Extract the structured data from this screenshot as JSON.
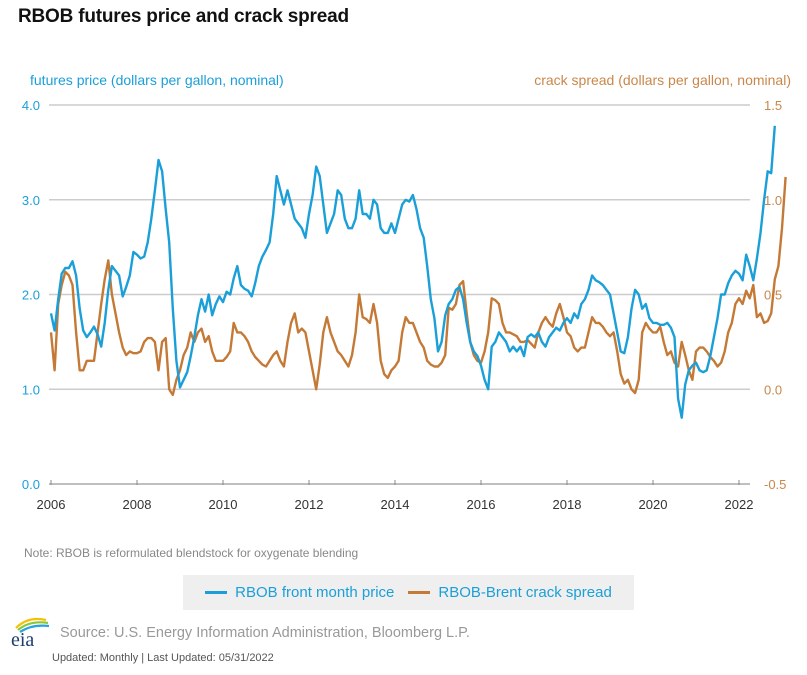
{
  "title": "RBOB futures price and crack spread",
  "note": "Note: RBOB is reformulated blendstock for oxygenate blending",
  "source": "Source: U.S. Energy Information Administration, Bloomberg L.P.",
  "updated": "Updated: Monthly | Last Updated: 05/31/2022",
  "logo": {
    "text": "eia",
    "icon": "eia-logo-icon"
  },
  "colors": {
    "price": "#1a9fd9",
    "spread": "#c47a36",
    "grid": "#cccccc",
    "legend_bg": "#efefef"
  },
  "chart_data": {
    "type": "line",
    "title": "RBOB futures price and crack spread",
    "xlabel": "",
    "ylabel_left": "futures price (dollars per gallon, nominal)",
    "ylabel_right": "crack spread (dollars per gallon, nominal)",
    "x_ticks": [
      "2006",
      "2008",
      "2010",
      "2012",
      "2014",
      "2016",
      "2018",
      "2020",
      "2022"
    ],
    "y_left_ticks": [
      "0.0",
      "1.0",
      "2.0",
      "3.0",
      "4.0"
    ],
    "y_right_ticks": [
      "-0.5",
      "0.0",
      "0.5",
      "1.0",
      "1.5"
    ],
    "ylim_left": [
      0,
      4
    ],
    "ylim_right": [
      -0.5,
      1.5
    ],
    "xlim": [
      2006.0,
      2022.75
    ],
    "grid": true,
    "legend_position": "bottom-center",
    "x_start": 2006.0,
    "x_step": 0.0833333,
    "series": [
      {
        "name": "RBOB front month price",
        "axis": "left",
        "values": [
          1.8,
          1.62,
          1.95,
          2.22,
          2.28,
          2.28,
          2.35,
          2.2,
          1.85,
          1.62,
          1.55,
          1.6,
          1.66,
          1.58,
          1.45,
          1.7,
          2.05,
          2.3,
          2.25,
          2.2,
          1.98,
          2.08,
          2.2,
          2.45,
          2.42,
          2.38,
          2.4,
          2.55,
          2.8,
          3.1,
          3.42,
          3.3,
          2.9,
          2.55,
          1.85,
          1.3,
          1.02,
          1.1,
          1.18,
          1.35,
          1.55,
          1.78,
          1.95,
          1.82,
          2.0,
          1.78,
          1.9,
          1.98,
          1.92,
          2.03,
          2.0,
          2.17,
          2.3,
          2.1,
          2.06,
          2.04,
          1.98,
          2.12,
          2.3,
          2.4,
          2.47,
          2.55,
          2.85,
          3.25,
          3.1,
          2.95,
          3.1,
          2.95,
          2.8,
          2.75,
          2.7,
          2.6,
          2.85,
          3.05,
          3.35,
          3.25,
          2.95,
          2.65,
          2.75,
          2.85,
          3.1,
          3.05,
          2.8,
          2.7,
          2.7,
          2.8,
          3.1,
          2.85,
          2.85,
          2.8,
          3.0,
          2.95,
          2.7,
          2.65,
          2.65,
          2.75,
          2.65,
          2.8,
          2.95,
          3.0,
          2.98,
          3.05,
          2.9,
          2.7,
          2.6,
          2.3,
          1.95,
          1.75,
          1.4,
          1.5,
          1.78,
          1.9,
          1.95,
          2.05,
          2.08,
          1.95,
          1.7,
          1.5,
          1.4,
          1.35,
          1.25,
          1.1,
          1.0,
          1.45,
          1.5,
          1.6,
          1.55,
          1.5,
          1.4,
          1.45,
          1.4,
          1.45,
          1.35,
          1.55,
          1.58,
          1.55,
          1.6,
          1.5,
          1.45,
          1.55,
          1.6,
          1.65,
          1.62,
          1.7,
          1.75,
          1.7,
          1.8,
          1.75,
          1.9,
          1.95,
          2.05,
          2.2,
          2.15,
          2.13,
          2.1,
          2.05,
          2.0,
          1.8,
          1.6,
          1.4,
          1.38,
          1.55,
          1.85,
          2.05,
          2.0,
          1.85,
          1.9,
          1.75,
          1.7,
          1.7,
          1.68,
          1.68,
          1.7,
          1.65,
          1.55,
          0.9,
          0.7,
          1.05,
          1.2,
          1.25,
          1.28,
          1.2,
          1.18,
          1.2,
          1.35,
          1.55,
          1.75,
          2.0,
          2.0,
          2.12,
          2.2,
          2.25,
          2.22,
          2.15,
          2.42,
          2.3,
          2.15,
          2.38,
          2.65,
          3.0,
          3.3,
          3.28,
          3.78
        ]
      },
      {
        "name": "RBOB-Brent crack spread",
        "axis": "right",
        "values": [
          0.3,
          0.1,
          0.45,
          0.55,
          0.62,
          0.6,
          0.55,
          0.3,
          0.1,
          0.1,
          0.15,
          0.15,
          0.15,
          0.3,
          0.45,
          0.58,
          0.68,
          0.5,
          0.4,
          0.3,
          0.22,
          0.18,
          0.2,
          0.19,
          0.19,
          0.2,
          0.25,
          0.27,
          0.27,
          0.25,
          0.1,
          0.25,
          0.27,
          0.0,
          -0.03,
          0.05,
          0.1,
          0.18,
          0.22,
          0.3,
          0.25,
          0.3,
          0.32,
          0.25,
          0.28,
          0.2,
          0.15,
          0.15,
          0.15,
          0.17,
          0.2,
          0.35,
          0.3,
          0.3,
          0.28,
          0.25,
          0.2,
          0.17,
          0.15,
          0.13,
          0.12,
          0.15,
          0.18,
          0.2,
          0.15,
          0.12,
          0.25,
          0.35,
          0.4,
          0.3,
          0.32,
          0.3,
          0.2,
          0.1,
          0.0,
          0.13,
          0.3,
          0.38,
          0.3,
          0.25,
          0.2,
          0.18,
          0.15,
          0.12,
          0.18,
          0.3,
          0.5,
          0.38,
          0.37,
          0.35,
          0.45,
          0.35,
          0.15,
          0.08,
          0.06,
          0.1,
          0.12,
          0.15,
          0.3,
          0.38,
          0.35,
          0.35,
          0.3,
          0.25,
          0.22,
          0.15,
          0.13,
          0.12,
          0.12,
          0.14,
          0.18,
          0.43,
          0.42,
          0.45,
          0.55,
          0.57,
          0.4,
          0.25,
          0.18,
          0.15,
          0.14,
          0.2,
          0.3,
          0.48,
          0.47,
          0.45,
          0.35,
          0.3,
          0.3,
          0.29,
          0.28,
          0.25,
          0.25,
          0.26,
          0.24,
          0.22,
          0.3,
          0.35,
          0.38,
          0.35,
          0.33,
          0.4,
          0.45,
          0.38,
          0.3,
          0.28,
          0.22,
          0.2,
          0.22,
          0.22,
          0.3,
          0.38,
          0.35,
          0.35,
          0.33,
          0.3,
          0.28,
          0.3,
          0.2,
          0.08,
          0.03,
          0.05,
          0.0,
          -0.02,
          0.05,
          0.3,
          0.35,
          0.32,
          0.3,
          0.3,
          0.33,
          0.25,
          0.18,
          0.2,
          0.14,
          0.12,
          0.25,
          0.18,
          0.1,
          0.05,
          0.2,
          0.22,
          0.22,
          0.2,
          0.17,
          0.15,
          0.12,
          0.14,
          0.2,
          0.3,
          0.35,
          0.45,
          0.48,
          0.45,
          0.52,
          0.48,
          0.55,
          0.38,
          0.4,
          0.35,
          0.36,
          0.4,
          0.58,
          0.65,
          0.85,
          1.12
        ]
      }
    ]
  },
  "legend": [
    {
      "label": "RBOB front month price",
      "series": "price"
    },
    {
      "label": "RBOB-Brent crack spread",
      "series": "spread"
    }
  ]
}
